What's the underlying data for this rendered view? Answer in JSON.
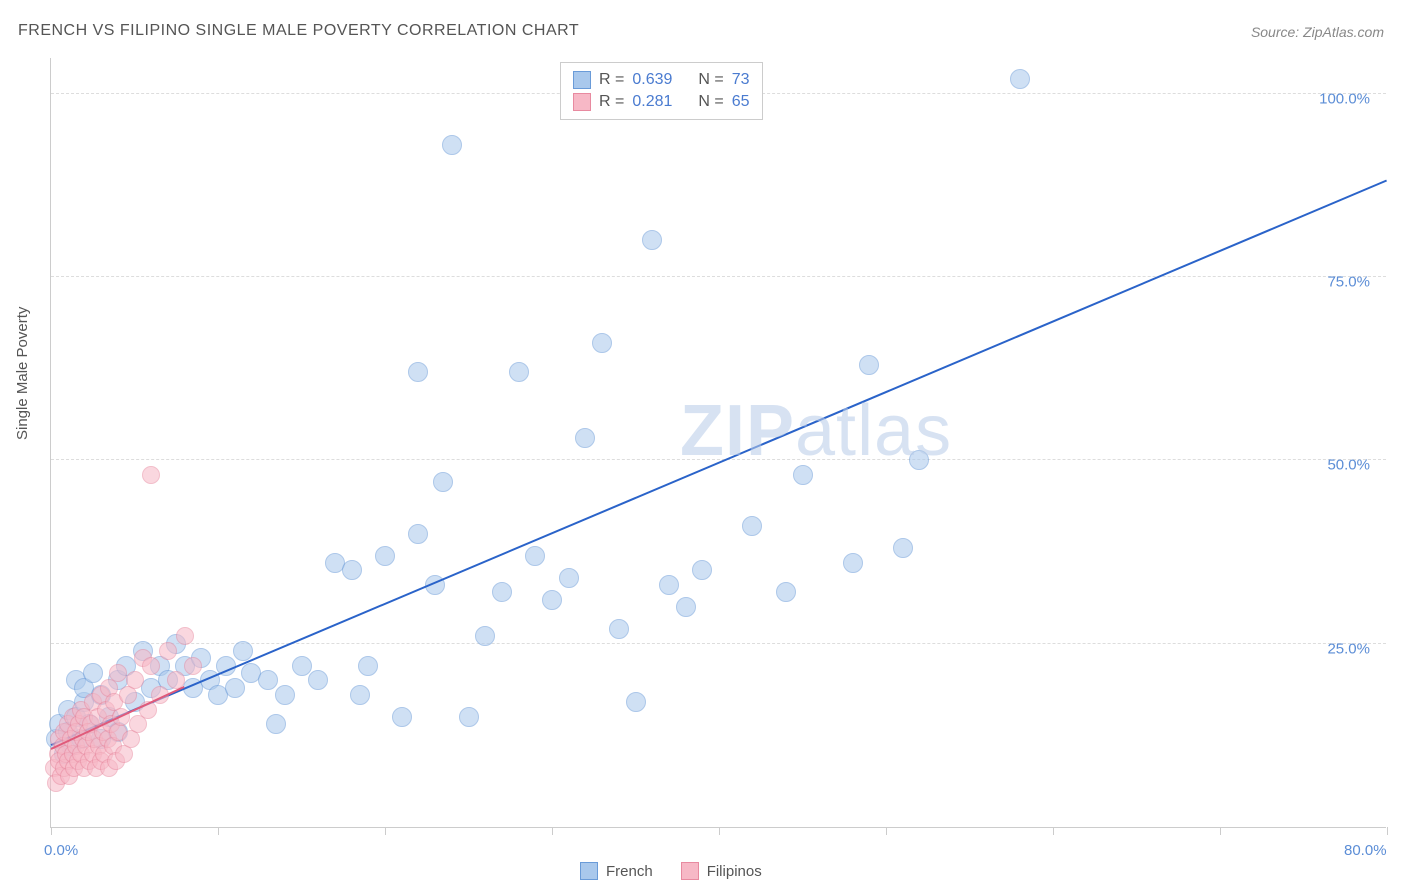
{
  "title": "FRENCH VS FILIPINO SINGLE MALE POVERTY CORRELATION CHART",
  "source": "Source: ZipAtlas.com",
  "ylabel": "Single Male Poverty",
  "watermark_bold": "ZIP",
  "watermark_rest": "atlas",
  "chart": {
    "type": "scatter",
    "background_color": "#ffffff",
    "grid_color": "#dddddd",
    "axis_color": "#cccccc",
    "xlim": [
      0,
      80
    ],
    "ylim": [
      0,
      105
    ],
    "x_ticks": [
      0,
      10,
      20,
      30,
      40,
      50,
      60,
      70,
      80
    ],
    "x_tick_labels": {
      "0": "0.0%",
      "80": "80.0%"
    },
    "y_gridlines": [
      25,
      50,
      75,
      100
    ],
    "y_tick_labels": {
      "25": "25.0%",
      "50": "50.0%",
      "75": "75.0%",
      "100": "100.0%"
    },
    "label_fontsize": 15,
    "label_color": "#5b8dd6",
    "title_fontsize": 16,
    "title_color": "#555555",
    "series": [
      {
        "name": "French",
        "fill": "#a9c8ec",
        "stroke": "#6a9bd8",
        "fill_opacity": 0.55,
        "marker_radius": 10,
        "R": "0.639",
        "N": "73",
        "trend": {
          "x1": 0,
          "y1": 11,
          "x2": 80,
          "y2": 88,
          "color": "#2a63c9",
          "width": 2
        },
        "points": [
          [
            0.3,
            12
          ],
          [
            0.5,
            14
          ],
          [
            0.8,
            10
          ],
          [
            1,
            13
          ],
          [
            1,
            16
          ],
          [
            1.2,
            11
          ],
          [
            1.5,
            15
          ],
          [
            1.5,
            20
          ],
          [
            1.8,
            12
          ],
          [
            2,
            17
          ],
          [
            2,
            19
          ],
          [
            2.3,
            14
          ],
          [
            2.5,
            21
          ],
          [
            3,
            12
          ],
          [
            3,
            18
          ],
          [
            3.5,
            15
          ],
          [
            4,
            20
          ],
          [
            4,
            13
          ],
          [
            4.5,
            22
          ],
          [
            5,
            17
          ],
          [
            5.5,
            24
          ],
          [
            6,
            19
          ],
          [
            6.5,
            22
          ],
          [
            7,
            20
          ],
          [
            7.5,
            25
          ],
          [
            8,
            22
          ],
          [
            8.5,
            19
          ],
          [
            9,
            23
          ],
          [
            9.5,
            20
          ],
          [
            10,
            18
          ],
          [
            10.5,
            22
          ],
          [
            11,
            19
          ],
          [
            11.5,
            24
          ],
          [
            12,
            21
          ],
          [
            13,
            20
          ],
          [
            13.5,
            14
          ],
          [
            14,
            18
          ],
          [
            15,
            22
          ],
          [
            16,
            20
          ],
          [
            17,
            36
          ],
          [
            18,
            35
          ],
          [
            18.5,
            18
          ],
          [
            19,
            22
          ],
          [
            20,
            37
          ],
          [
            21,
            15
          ],
          [
            22,
            40
          ],
          [
            22,
            62
          ],
          [
            23,
            33
          ],
          [
            23.5,
            47
          ],
          [
            24,
            93
          ],
          [
            25,
            15
          ],
          [
            26,
            26
          ],
          [
            27,
            32
          ],
          [
            28,
            62
          ],
          [
            29,
            37
          ],
          [
            30,
            31
          ],
          [
            31,
            34
          ],
          [
            32,
            53
          ],
          [
            33,
            66
          ],
          [
            34,
            27
          ],
          [
            35,
            17
          ],
          [
            36,
            80
          ],
          [
            37,
            33
          ],
          [
            38,
            30
          ],
          [
            39,
            35
          ],
          [
            42,
            41
          ],
          [
            44,
            32
          ],
          [
            45,
            48
          ],
          [
            48,
            36
          ],
          [
            49,
            63
          ],
          [
            51,
            38
          ],
          [
            52,
            50
          ],
          [
            58,
            102
          ]
        ]
      },
      {
        "name": "Filipinos",
        "fill": "#f7b8c6",
        "stroke": "#e88aa0",
        "fill_opacity": 0.55,
        "marker_radius": 9,
        "R": "0.281",
        "N": "65",
        "trend": {
          "x1": 0,
          "y1": 10.5,
          "x2": 8,
          "y2": 19,
          "color": "#e05a7a",
          "width": 2
        },
        "points": [
          [
            0.2,
            8
          ],
          [
            0.3,
            6
          ],
          [
            0.4,
            10
          ],
          [
            0.5,
            9
          ],
          [
            0.5,
            12
          ],
          [
            0.6,
            7
          ],
          [
            0.7,
            11
          ],
          [
            0.8,
            8
          ],
          [
            0.8,
            13
          ],
          [
            0.9,
            10
          ],
          [
            1,
            9
          ],
          [
            1,
            14
          ],
          [
            1.1,
            7
          ],
          [
            1.2,
            12
          ],
          [
            1.3,
            10
          ],
          [
            1.3,
            15
          ],
          [
            1.4,
            8
          ],
          [
            1.5,
            11
          ],
          [
            1.5,
            13
          ],
          [
            1.6,
            9
          ],
          [
            1.7,
            14
          ],
          [
            1.8,
            10
          ],
          [
            1.8,
            16
          ],
          [
            1.9,
            12
          ],
          [
            2,
            8
          ],
          [
            2,
            15
          ],
          [
            2.1,
            11
          ],
          [
            2.2,
            13
          ],
          [
            2.3,
            9
          ],
          [
            2.4,
            14
          ],
          [
            2.5,
            10
          ],
          [
            2.5,
            17
          ],
          [
            2.6,
            12
          ],
          [
            2.7,
            8
          ],
          [
            2.8,
            15
          ],
          [
            2.9,
            11
          ],
          [
            3,
            9
          ],
          [
            3,
            18
          ],
          [
            3.1,
            13
          ],
          [
            3.2,
            10
          ],
          [
            3.3,
            16
          ],
          [
            3.4,
            12
          ],
          [
            3.5,
            8
          ],
          [
            3.5,
            19
          ],
          [
            3.6,
            14
          ],
          [
            3.7,
            11
          ],
          [
            3.8,
            17
          ],
          [
            3.9,
            9
          ],
          [
            4,
            13
          ],
          [
            4,
            21
          ],
          [
            4.2,
            15
          ],
          [
            4.4,
            10
          ],
          [
            4.6,
            18
          ],
          [
            4.8,
            12
          ],
          [
            5,
            20
          ],
          [
            5.2,
            14
          ],
          [
            5.5,
            23
          ],
          [
            5.8,
            16
          ],
          [
            6,
            22
          ],
          [
            6,
            48
          ],
          [
            6.5,
            18
          ],
          [
            7,
            24
          ],
          [
            7.5,
            20
          ],
          [
            8,
            26
          ],
          [
            8.5,
            22
          ]
        ]
      }
    ]
  },
  "legend_top": {
    "r_label": "R =",
    "n_label": "N ="
  },
  "legend_bottom": [
    {
      "label": "French",
      "fill": "#a9c8ec",
      "stroke": "#6a9bd8"
    },
    {
      "label": "Filipinos",
      "fill": "#f7b8c6",
      "stroke": "#e88aa0"
    }
  ]
}
